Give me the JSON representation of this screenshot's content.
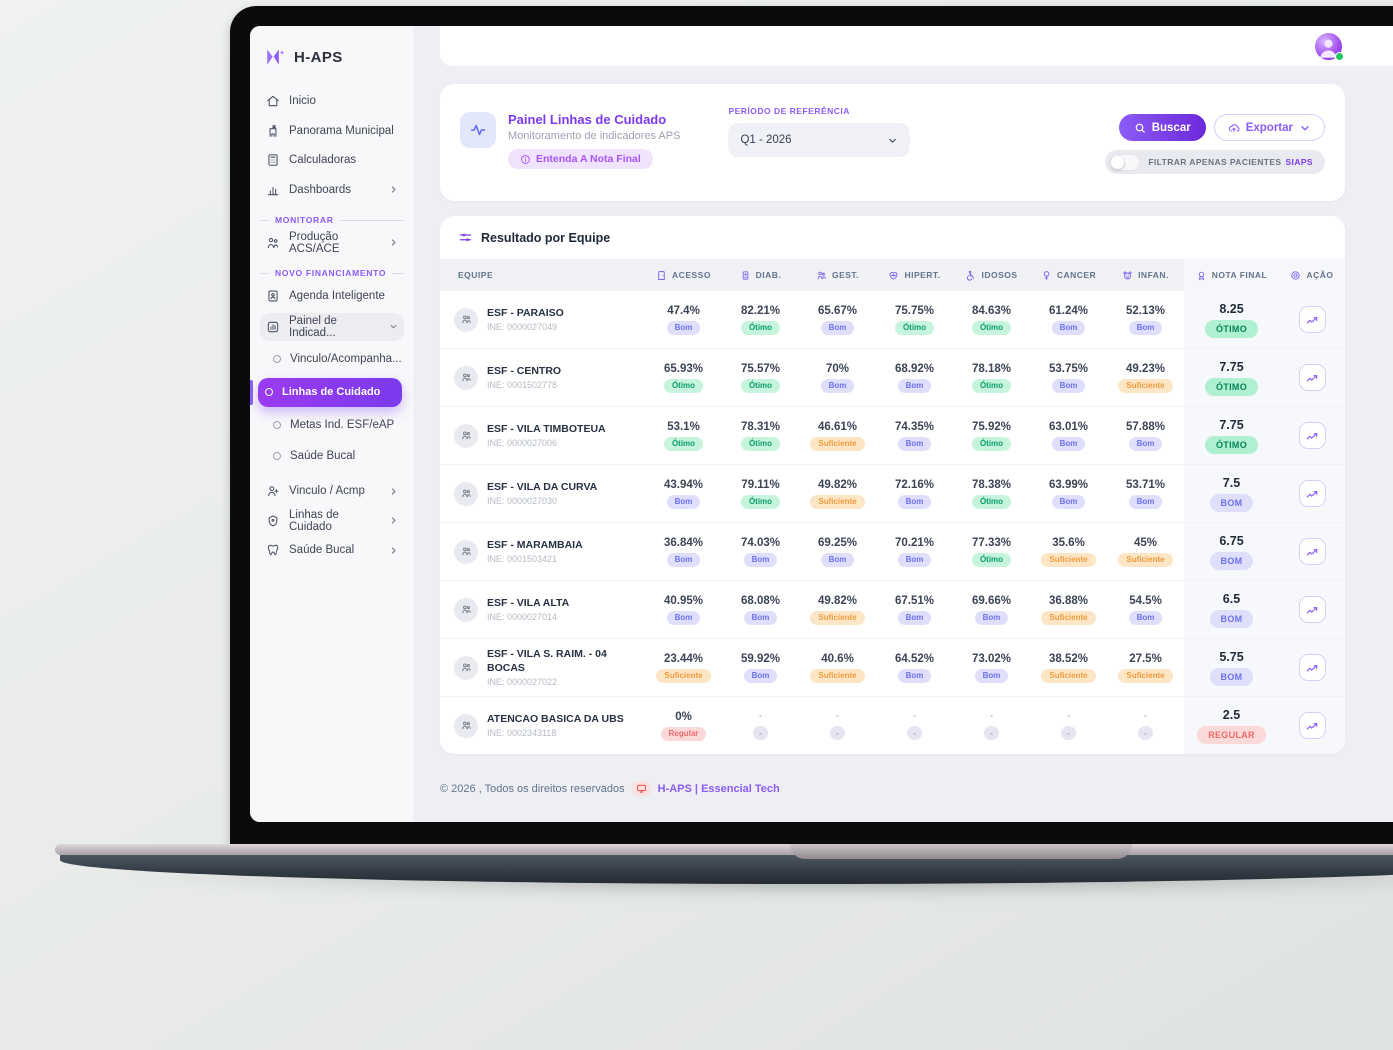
{
  "app_name": "H-APS",
  "colors": {
    "accent": "#7c3aed",
    "status_otimo": "#0b9e6d",
    "status_bom": "#6d70ee",
    "status_suficiente": "#ef9c3e",
    "status_regular": "#ee6a6a"
  },
  "sidebar": {
    "logo": "H-APS",
    "items_top": [
      {
        "label": "Inicio"
      },
      {
        "label": "Panorama Municipal"
      },
      {
        "label": "Calculadoras"
      },
      {
        "label": "Dashboards"
      }
    ],
    "section_monitorar": "MONITORAR",
    "item_producao": "Produção ACS/ACE",
    "section_financiamento": "NOVO FINANCIAMENTO",
    "item_agenda": "Agenda Inteligente",
    "item_painel": "Painel de Indicad...",
    "sub_items": [
      {
        "label": "Vinculo/Acompanha..."
      },
      {
        "label": "Linhas de Cuidado",
        "active": true
      },
      {
        "label": "Metas Ind. ESF/eAP"
      },
      {
        "label": "Saúde Bucal"
      }
    ],
    "item_vinculo": "Vinculo / Acmp",
    "item_linhas": "Linhas de Cuidado",
    "item_saude": "Saúde Bucal"
  },
  "header": {
    "title": "Painel Linhas de Cuidado",
    "subtitle": "Monitoramento de indicadores APS",
    "nota_pill": "Entenda A Nota Final",
    "period_label": "PERÍODO DE REFERÊNCIA",
    "period_value": "Q1 - 2026",
    "buscar": "Buscar",
    "exportar": "Exportar",
    "filter_label": "FILTRAR APENAS PACIENTES",
    "filter_brand": "SIAPS",
    "filter_on": false
  },
  "table": {
    "title": "Resultado por Equipe",
    "columns": [
      {
        "key": "equipe",
        "label": "EQUIPE",
        "icon": null
      },
      {
        "key": "acesso",
        "label": "ACESSO",
        "icon": "door-icon"
      },
      {
        "key": "diab",
        "label": "DIAB.",
        "icon": "glucose-meter-icon"
      },
      {
        "key": "gest",
        "label": "GEST.",
        "icon": "people-icon"
      },
      {
        "key": "hipert",
        "label": "HIPERT.",
        "icon": "heart-pulse-icon"
      },
      {
        "key": "idosos",
        "label": "IDOSOS",
        "icon": "wheelchair-icon"
      },
      {
        "key": "cancer",
        "label": "CANCER",
        "icon": "female-symbol-icon"
      },
      {
        "key": "infan",
        "label": "INFAN.",
        "icon": "teddy-face-icon"
      },
      {
        "key": "nota",
        "label": "NOTA FINAL",
        "icon": "medal-icon"
      },
      {
        "key": "acao",
        "label": "AÇÃO",
        "icon": "target-icon"
      }
    ],
    "rows": [
      {
        "name": "ESF - PARAISO",
        "ine": "INE: 0000027049",
        "values": [
          {
            "v": "47.4%",
            "s": "Bom"
          },
          {
            "v": "82.21%",
            "s": "Ótimo"
          },
          {
            "v": "65.67%",
            "s": "Bom"
          },
          {
            "v": "75.75%",
            "s": "Ótimo"
          },
          {
            "v": "84.63%",
            "s": "Ótimo"
          },
          {
            "v": "61.24%",
            "s": "Bom"
          },
          {
            "v": "52.13%",
            "s": "Bom"
          }
        ],
        "nota": {
          "score": "8.25",
          "status": "ÓTIMO"
        }
      },
      {
        "name": "ESF - CENTRO",
        "ine": "INE: 0001502778",
        "values": [
          {
            "v": "65.93%",
            "s": "Ótimo"
          },
          {
            "v": "75.57%",
            "s": "Ótimo"
          },
          {
            "v": "70%",
            "s": "Bom"
          },
          {
            "v": "68.92%",
            "s": "Bom"
          },
          {
            "v": "78.18%",
            "s": "Ótimo"
          },
          {
            "v": "53.75%",
            "s": "Bom"
          },
          {
            "v": "49.23%",
            "s": "Suficiente"
          }
        ],
        "nota": {
          "score": "7.75",
          "status": "ÓTIMO"
        }
      },
      {
        "name": "ESF - VILA TIMBOTEUA",
        "ine": "INE: 0000027006",
        "values": [
          {
            "v": "53.1%",
            "s": "Ótimo"
          },
          {
            "v": "78.31%",
            "s": "Ótimo"
          },
          {
            "v": "46.61%",
            "s": "Suficiente"
          },
          {
            "v": "74.35%",
            "s": "Bom"
          },
          {
            "v": "75.92%",
            "s": "Ótimo"
          },
          {
            "v": "63.01%",
            "s": "Bom"
          },
          {
            "v": "57.88%",
            "s": "Bom"
          }
        ],
        "nota": {
          "score": "7.75",
          "status": "ÓTIMO"
        }
      },
      {
        "name": "ESF - VILA DA CURVA",
        "ine": "INE: 0000027030",
        "values": [
          {
            "v": "43.94%",
            "s": "Bom"
          },
          {
            "v": "79.11%",
            "s": "Ótimo"
          },
          {
            "v": "49.82%",
            "s": "Suficiente"
          },
          {
            "v": "72.16%",
            "s": "Bom"
          },
          {
            "v": "78.38%",
            "s": "Ótimo"
          },
          {
            "v": "63.99%",
            "s": "Bom"
          },
          {
            "v": "53.71%",
            "s": "Bom"
          }
        ],
        "nota": {
          "score": "7.5",
          "status": "BOM"
        }
      },
      {
        "name": "ESF - MARAMBAIA",
        "ine": "INE: 0001503421",
        "values": [
          {
            "v": "36.84%",
            "s": "Bom"
          },
          {
            "v": "74.03%",
            "s": "Bom"
          },
          {
            "v": "69.25%",
            "s": "Bom"
          },
          {
            "v": "70.21%",
            "s": "Bom"
          },
          {
            "v": "77.33%",
            "s": "Ótimo"
          },
          {
            "v": "35.6%",
            "s": "Suficiente"
          },
          {
            "v": "45%",
            "s": "Suficiente"
          }
        ],
        "nota": {
          "score": "6.75",
          "status": "BOM"
        }
      },
      {
        "name": "ESF - VILA ALTA",
        "ine": "INE: 0000027014",
        "values": [
          {
            "v": "40.95%",
            "s": "Bom"
          },
          {
            "v": "68.08%",
            "s": "Bom"
          },
          {
            "v": "49.82%",
            "s": "Suficiente"
          },
          {
            "v": "67.51%",
            "s": "Bom"
          },
          {
            "v": "69.66%",
            "s": "Bom"
          },
          {
            "v": "36.88%",
            "s": "Suficiente"
          },
          {
            "v": "54.5%",
            "s": "Bom"
          }
        ],
        "nota": {
          "score": "6.5",
          "status": "BOM"
        }
      },
      {
        "name": "ESF - VILA S. RAIM. - 04 BOCAS",
        "ine": "INE: 0000027022",
        "values": [
          {
            "v": "23.44%",
            "s": "Suficiente"
          },
          {
            "v": "59.92%",
            "s": "Bom"
          },
          {
            "v": "40.6%",
            "s": "Suficiente"
          },
          {
            "v": "64.52%",
            "s": "Bom"
          },
          {
            "v": "73.02%",
            "s": "Bom"
          },
          {
            "v": "38.52%",
            "s": "Suficiente"
          },
          {
            "v": "27.5%",
            "s": "Suficiente"
          }
        ],
        "nota": {
          "score": "5.75",
          "status": "BOM"
        }
      },
      {
        "name": "ATENCAO BASICA DA UBS",
        "ine": "INE: 0002343118",
        "values": [
          {
            "v": "0%",
            "s": "Regular"
          },
          {
            "v": "-",
            "s": "-"
          },
          {
            "v": "-",
            "s": "-"
          },
          {
            "v": "-",
            "s": "-"
          },
          {
            "v": "-",
            "s": "-"
          },
          {
            "v": "-",
            "s": "-"
          },
          {
            "v": "-",
            "s": "-"
          }
        ],
        "nota": {
          "score": "2.5",
          "status": "REGULAR"
        }
      }
    ]
  },
  "footer": {
    "copyright": "© 2026 , Todos os direitos reservados",
    "brand": "H-APS",
    "divider": "|",
    "company": "Essencial Tech"
  }
}
